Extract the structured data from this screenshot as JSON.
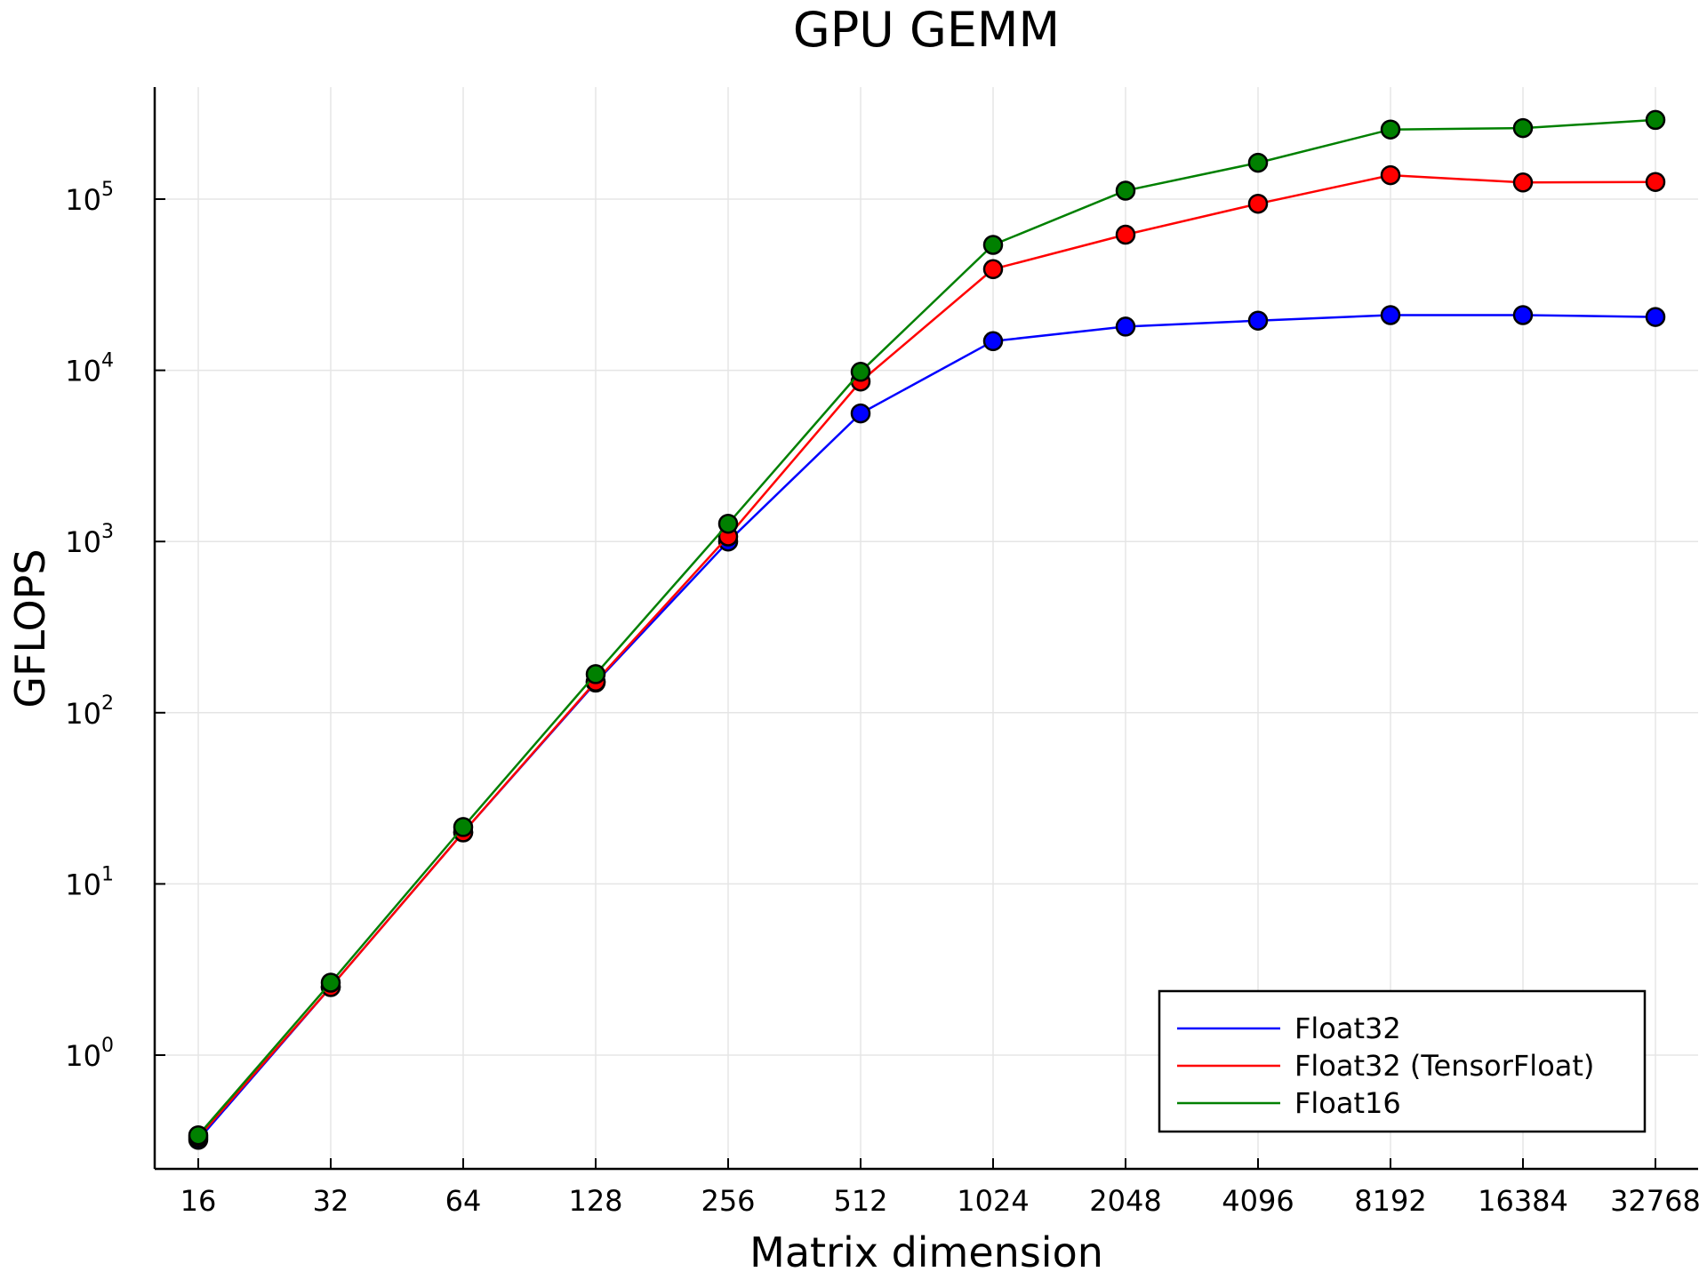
{
  "chart_data": {
    "type": "line",
    "title": "GPU GEMM",
    "xlabel": "Matrix dimension",
    "ylabel": "GFLOPS",
    "x_scale": "log2",
    "y_scale": "log10",
    "x": [
      16,
      32,
      64,
      128,
      256,
      512,
      1024,
      2048,
      4096,
      8192,
      16384,
      32768
    ],
    "x_tick_labels": [
      "16",
      "32",
      "64",
      "128",
      "256",
      "512",
      "1024",
      "2048",
      "4096",
      "8192",
      "16384",
      "32768"
    ],
    "y_ticks": [
      {
        "base": "10",
        "exp": "0"
      },
      {
        "base": "10",
        "exp": "1"
      },
      {
        "base": "10",
        "exp": "2"
      },
      {
        "base": "10",
        "exp": "3"
      },
      {
        "base": "10",
        "exp": "4"
      },
      {
        "base": "10",
        "exp": "5"
      }
    ],
    "ylim": [
      0.1,
      400000
    ],
    "grid": true,
    "legend_position": "bottom-right",
    "series": [
      {
        "name": "Float32",
        "color": "#0000ff",
        "values": [
          0.32,
          2.5,
          20,
          150,
          1000,
          5600,
          14800,
          18000,
          19500,
          21000,
          21000,
          20500
        ]
      },
      {
        "name": "Float32 (TensorFloat)",
        "color": "#ff0000",
        "values": [
          0.33,
          2.5,
          20,
          152,
          1070,
          8600,
          39000,
          62000,
          94000,
          138000,
          125000,
          126000
        ]
      },
      {
        "name": "Float16",
        "color": "#008000",
        "values": [
          0.34,
          2.65,
          21.5,
          168,
          1270,
          9800,
          54000,
          112000,
          163000,
          255000,
          260000,
          290000
        ]
      }
    ]
  }
}
